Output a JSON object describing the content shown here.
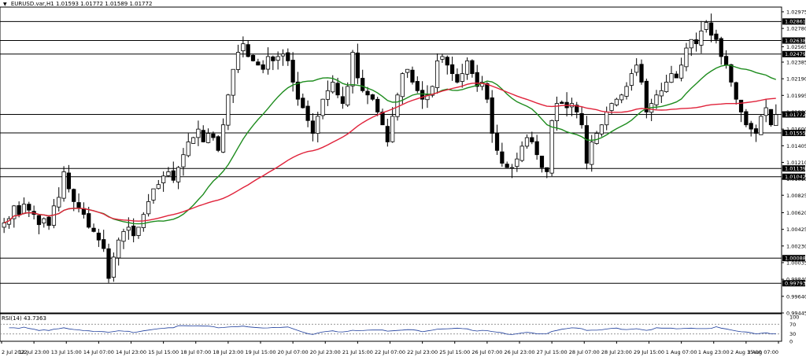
{
  "header": {
    "arrow_icon": "triangle-down-icon",
    "symbol": "EURUSD.var,H1",
    "ohlc": "1.01593 1.01772 1.01589 1.01772"
  },
  "rsi_header": {
    "label": "RSI(14) 43.7363"
  },
  "colors": {
    "bull": "#000000",
    "bear": "#000000",
    "ma_fast": "#1e8c1e",
    "ma_slow": "#e0223a",
    "level_line": "#000000",
    "grid": "#cfcfcf"
  },
  "chart_data": [
    {
      "type": "candlestick",
      "title": "EURUSD.var,H1",
      "ylim": [
        0.99445,
        1.0303
      ],
      "y_ticks": [
        "1.02975",
        "1.02780",
        "1.02565",
        "1.02385",
        "1.02190",
        "1.01995",
        "1.01800",
        "1.01600",
        "1.01405",
        "1.01210",
        "1.01015",
        "1.00825",
        "1.00620",
        "1.00425",
        "1.00230",
        "1.00035",
        "0.99840",
        "0.99640",
        "0.99445"
      ],
      "horizontal_levels": [
        "1.02861",
        "1.02638",
        "1.02479",
        "1.01772",
        "1.01555",
        "1.01139",
        "1.01042",
        "1.00088",
        "0.99793"
      ],
      "current_price": "1.01772",
      "x_labels": [
        "2 Jul 2022",
        "12 Jul 23:00",
        "13 Jul 15:00",
        "14 Jul 07:00",
        "14 Jul 23:00",
        "15 Jul 15:00",
        "18 Jul 07:00",
        "18 Jul 23:00",
        "19 Jul 15:00",
        "20 Jul 07:00",
        "20 Jul 23:00",
        "21 Jul 15:00",
        "22 Jul 07:00",
        "22 Jul 23:00",
        "25 Jul 15:00",
        "26 Jul 07:00",
        "26 Jul 23:00",
        "27 Jul 15:00",
        "28 Jul 07:00",
        "28 Jul 23:00",
        "29 Jul 15:00",
        "1 Aug 07:00",
        "1 Aug 23:00",
        "2 Aug 15:00",
        "3 Aug 07:00"
      ],
      "close_path": [
        1.005,
        1.0055,
        1.007,
        1.006,
        1.0072,
        1.0065,
        1.006,
        1.0048,
        1.0055,
        1.0047,
        1.007,
        1.008,
        1.011,
        1.009,
        1.0075,
        1.0068,
        1.006,
        1.0045,
        1.004,
        1.003,
        1.002,
        0.9985,
        1.001,
        1.003,
        1.004,
        1.0045,
        1.0035,
        1.0045,
        1.006,
        1.0075,
        1.009,
        1.0095,
        1.0105,
        1.011,
        1.01,
        1.0115,
        1.013,
        1.0145,
        1.015,
        1.016,
        1.0145,
        1.0155,
        1.015,
        1.0135,
        1.0165,
        1.02,
        1.023,
        1.025,
        1.026,
        1.0245,
        1.024,
        1.0235,
        1.023,
        1.0245,
        1.024,
        1.0245,
        1.0248,
        1.024,
        1.0215,
        1.0195,
        1.0185,
        1.017,
        1.0155,
        1.0175,
        1.0195,
        1.0205,
        1.0215,
        1.02,
        1.019,
        1.021,
        1.025,
        1.022,
        1.0205,
        1.02,
        1.0195,
        1.018,
        1.0165,
        1.0145,
        1.0175,
        1.02,
        1.0225,
        1.023,
        1.0215,
        1.0205,
        1.0195,
        1.02,
        1.021,
        1.024,
        1.0245,
        1.0235,
        1.0225,
        1.0215,
        1.0225,
        1.024,
        1.0225,
        1.021,
        1.0215,
        1.0195,
        1.0155,
        1.0135,
        1.012,
        1.0115,
        1.0115,
        1.0125,
        1.014,
        1.015,
        1.0145,
        1.013,
        1.0115,
        1.011,
        1.017,
        1.019,
        1.019,
        1.0185,
        1.019,
        1.018,
        1.0165,
        1.012,
        1.0145,
        1.0155,
        1.0165,
        1.018,
        1.019,
        1.0195,
        1.02,
        1.021,
        1.0225,
        1.0235,
        1.0215,
        1.018,
        1.019,
        1.02,
        1.0205,
        1.0215,
        1.0225,
        1.022,
        1.0235,
        1.0255,
        1.0265,
        1.026,
        1.0275,
        1.0285,
        1.027,
        1.0265,
        1.0245,
        1.0235,
        1.0215,
        1.0195,
        1.018,
        1.0165,
        1.016,
        1.0155,
        1.0175,
        1.0185,
        1.0165,
        1.0177
      ],
      "series": [
        {
          "name": "MA fast",
          "role": "ma_fast",
          "window": 20
        },
        {
          "name": "MA slow",
          "role": "ma_slow",
          "window": 50
        }
      ]
    },
    {
      "type": "line",
      "title": "RSI(14) 43.7363",
      "ylim": [
        0,
        100
      ],
      "y_ticks": [
        "100",
        "70",
        "30",
        "0"
      ],
      "levels": [
        70,
        30
      ],
      "source": "rsi_of_close_path_window_14"
    }
  ]
}
